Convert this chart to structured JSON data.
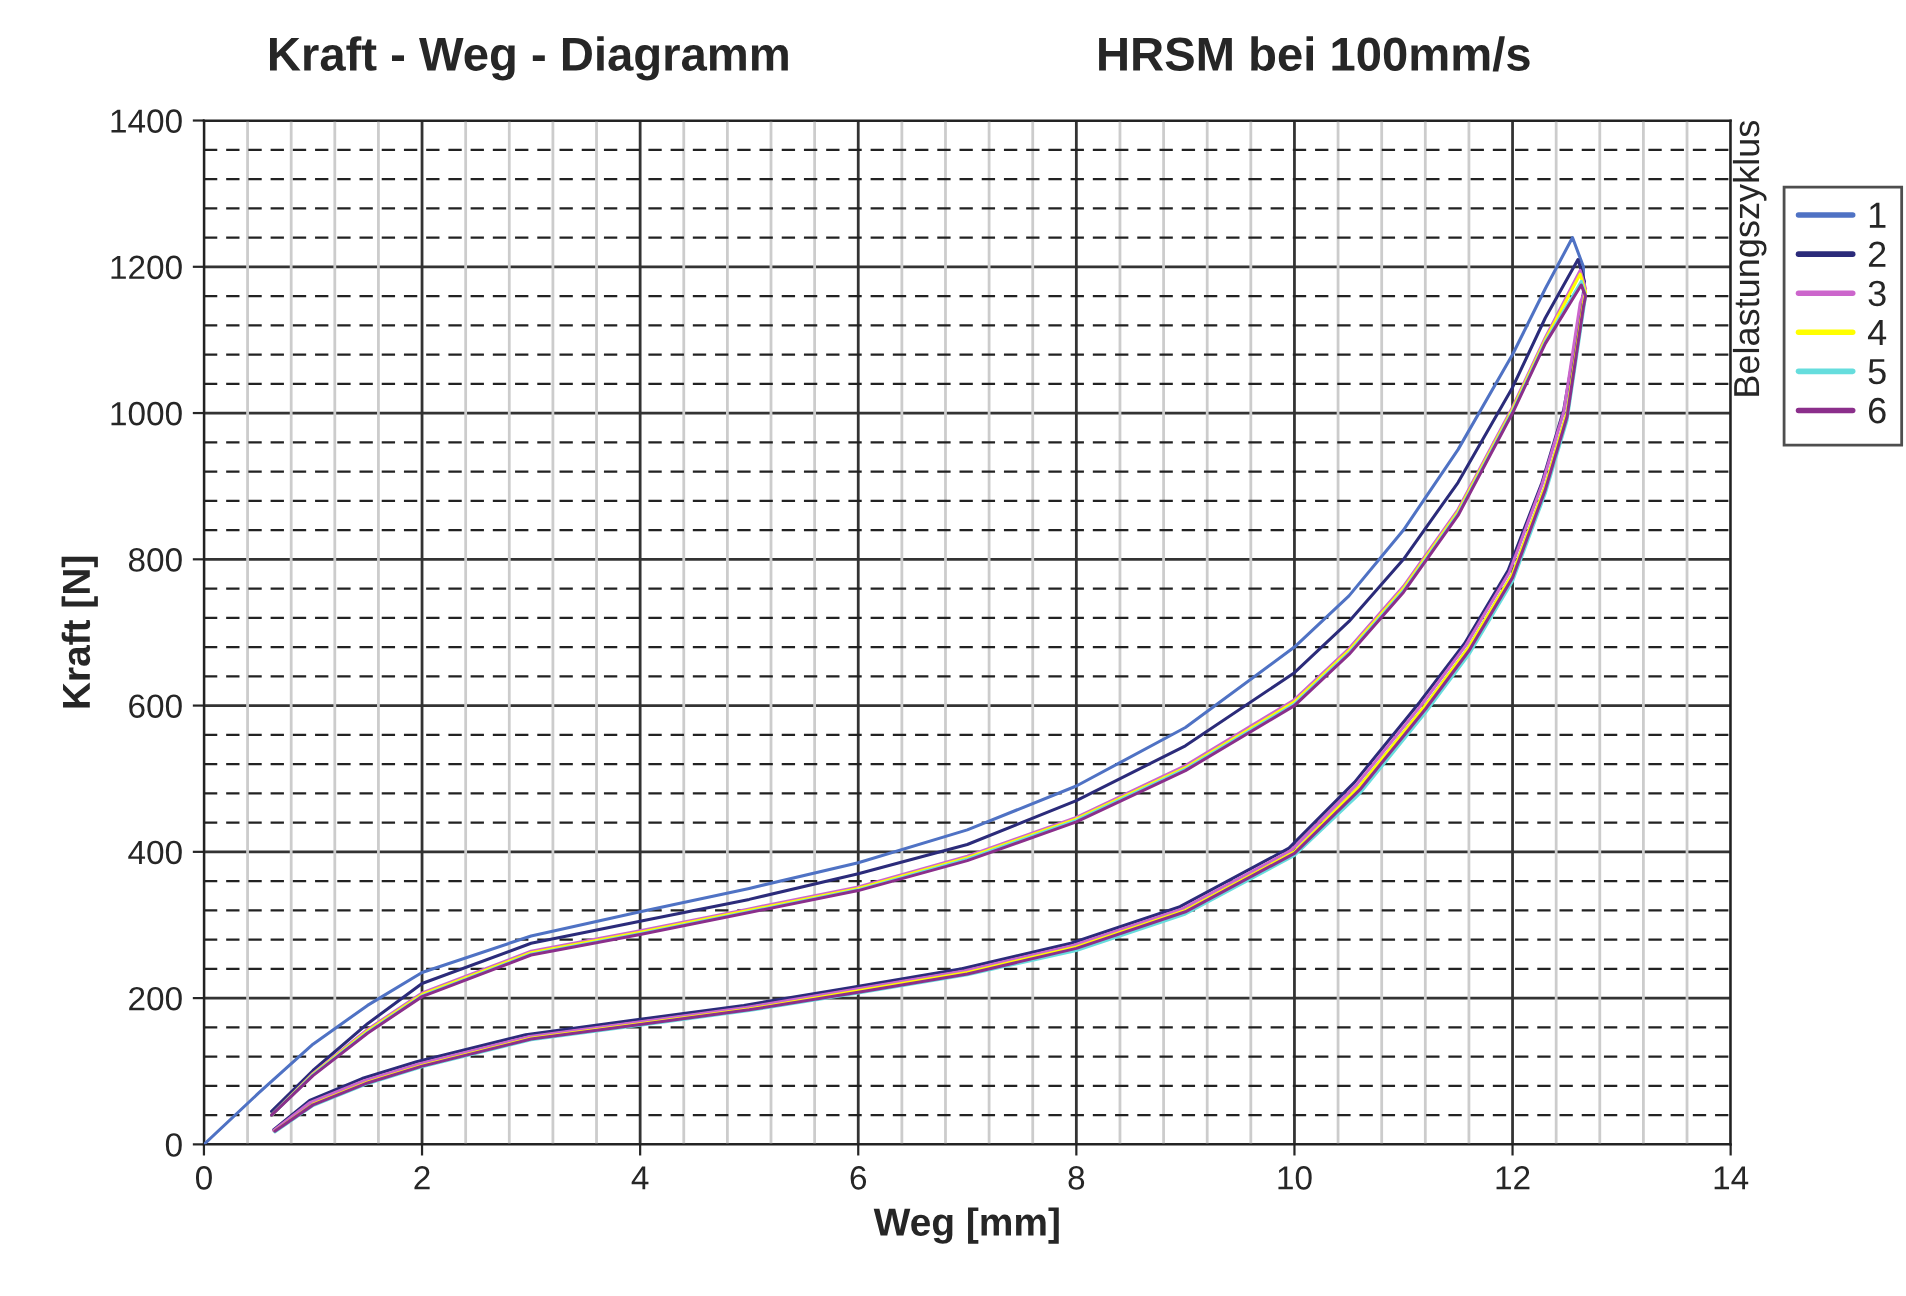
{
  "chart_data": {
    "type": "line",
    "title": "Kraft - Weg - Diagramm",
    "subtitle": "HRSM bei 100mm/s",
    "xlabel": "Weg [mm]",
    "ylabel": "Kraft [N]",
    "legend_title": "Belastungszyklus",
    "legend": "right",
    "grid": true,
    "marker": "none",
    "line_style": "solid",
    "xlim": [
      0,
      14
    ],
    "xticks": [
      0,
      2,
      4,
      6,
      8,
      10,
      12,
      14
    ],
    "ylim": [
      0,
      1400
    ],
    "yticks": [
      0,
      200,
      400,
      600,
      800,
      1000,
      1200,
      1400
    ],
    "series": [
      {
        "name": "1",
        "color": "#4f72c4",
        "x": [
          0,
          0.5,
          1,
          1.5,
          2,
          3,
          4,
          5,
          6,
          7,
          8,
          9,
          10,
          10.5,
          11,
          11.5,
          12,
          12.3,
          12.55,
          12.65,
          12.65,
          12.5,
          12.3,
          12.0,
          11.6,
          11.2,
          10.6,
          10.0,
          9.0,
          8.0,
          7.0,
          6.0,
          5.0,
          4.0,
          3.0,
          2.0,
          1.5,
          1.0,
          0.7
        ],
        "values": [
          0,
          70,
          137,
          190,
          235,
          285,
          318,
          350,
          385,
          430,
          490,
          570,
          680,
          750,
          840,
          950,
          1080,
          1170,
          1240,
          1200,
          1150,
          1000,
          900,
          780,
          680,
          600,
          490,
          400,
          320,
          270,
          235,
          210,
          185,
          165,
          145,
          108,
          85,
          57,
          25
        ]
      },
      {
        "name": "2",
        "color": "#2b2b7a",
        "x": [
          0.62,
          1,
          1.5,
          2,
          3,
          4,
          5,
          6,
          7,
          8,
          9,
          10,
          10.5,
          11,
          11.5,
          12,
          12.3,
          12.6,
          12.66,
          12.64,
          12.47,
          12.27,
          11.96,
          11.56,
          11.15,
          10.55,
          9.95,
          8.95,
          7.95,
          6.95,
          5.95,
          4.95,
          3.95,
          2.95,
          1.95,
          1.45,
          0.97,
          0.64
        ],
        "values": [
          45,
          101,
          165,
          220,
          275,
          305,
          335,
          370,
          410,
          470,
          545,
          645,
          715,
          800,
          905,
          1035,
          1130,
          1210,
          1180,
          1150,
          1005,
          905,
          785,
          685,
          605,
          495,
          405,
          325,
          275,
          240,
          215,
          190,
          170,
          150,
          113,
          90,
          60,
          20
        ]
      },
      {
        "name": "3",
        "color": "#cc66cc",
        "x": [
          0.62,
          1,
          1.5,
          2,
          3,
          4,
          5,
          6,
          7,
          8,
          9,
          10,
          10.5,
          11,
          11.5,
          12,
          12.3,
          12.62,
          12.67,
          12.62,
          12.47,
          12.27,
          11.97,
          11.57,
          11.17,
          10.57,
          9.97,
          8.97,
          7.97,
          6.97,
          5.97,
          4.97,
          3.97,
          2.97,
          1.97,
          1.47,
          0.97,
          0.64
        ],
        "values": [
          40,
          97,
          157,
          207,
          264,
          292,
          322,
          352,
          394,
          447,
          518,
          608,
          678,
          763,
          868,
          1008,
          1103,
          1195,
          1170,
          1150,
          1002,
          902,
          782,
          682,
          602,
          492,
          402,
          322,
          272,
          237,
          212,
          187,
          167,
          147,
          110,
          87,
          57,
          19
        ]
      },
      {
        "name": "4",
        "color": "#ffff00",
        "x": [
          0.62,
          1,
          1.5,
          2,
          3,
          4,
          5,
          6,
          7,
          8,
          9,
          10,
          10.5,
          11,
          11.5,
          12,
          12.3,
          12.62,
          12.67,
          12.65,
          12.5,
          12.3,
          12.0,
          11.6,
          11.2,
          10.6,
          10.0,
          9.0,
          8.0,
          7.0,
          6.0,
          5.0,
          4.0,
          3.0,
          2.0,
          1.5,
          1.0,
          0.65
        ],
        "values": [
          40,
          96,
          155,
          205,
          262,
          290,
          320,
          350,
          392,
          445,
          515,
          605,
          675,
          760,
          865,
          1005,
          1100,
          1190,
          1165,
          1150,
          1000,
          900,
          780,
          680,
          600,
          490,
          400,
          320,
          270,
          235,
          210,
          185,
          165,
          145,
          108,
          85,
          55,
          18
        ]
      },
      {
        "name": "5",
        "color": "#66dddd",
        "x": [
          0.62,
          1,
          1.5,
          2,
          3,
          4,
          5,
          6,
          7,
          8,
          9,
          10,
          10.5,
          11,
          11.5,
          12,
          12.3,
          12.63,
          12.67,
          12.65,
          12.5,
          12.3,
          12.0,
          11.6,
          11.2,
          10.6,
          10.0,
          9.0,
          8.0,
          7.0,
          6.0,
          5.0,
          4.0,
          3.0,
          2.0,
          1.5,
          1.0,
          0.65
        ],
        "values": [
          40,
          95,
          153,
          203,
          260,
          288,
          318,
          348,
          390,
          443,
          513,
          602,
          672,
          757,
          862,
          1002,
          1097,
          1180,
          1160,
          1140,
          990,
          890,
          770,
          670,
          590,
          480,
          395,
          315,
          265,
          232,
          207,
          183,
          163,
          143,
          106,
          83,
          53,
          17
        ]
      },
      {
        "name": "6",
        "color": "#8b2f8b",
        "x": [
          0.62,
          1,
          1.5,
          2,
          3,
          4,
          5,
          6,
          7,
          8,
          9,
          10,
          10.5,
          11,
          11.5,
          12,
          12.3,
          12.63,
          12.67,
          12.65,
          12.5,
          12.3,
          12.0,
          11.6,
          11.2,
          10.6,
          10.0,
          9.0,
          8.0,
          7.0,
          6.0,
          5.0,
          4.0,
          3.0,
          2.0,
          1.5,
          1.0,
          0.65
        ],
        "values": [
          40,
          94,
          152,
          202,
          259,
          287,
          317,
          347,
          388,
          441,
          511,
          600,
          670,
          755,
          860,
          1000,
          1095,
          1175,
          1160,
          1145,
          995,
          895,
          775,
          675,
          595,
          485,
          398,
          318,
          268,
          233,
          208,
          184,
          164,
          144,
          107,
          84,
          54,
          18
        ]
      }
    ]
  }
}
